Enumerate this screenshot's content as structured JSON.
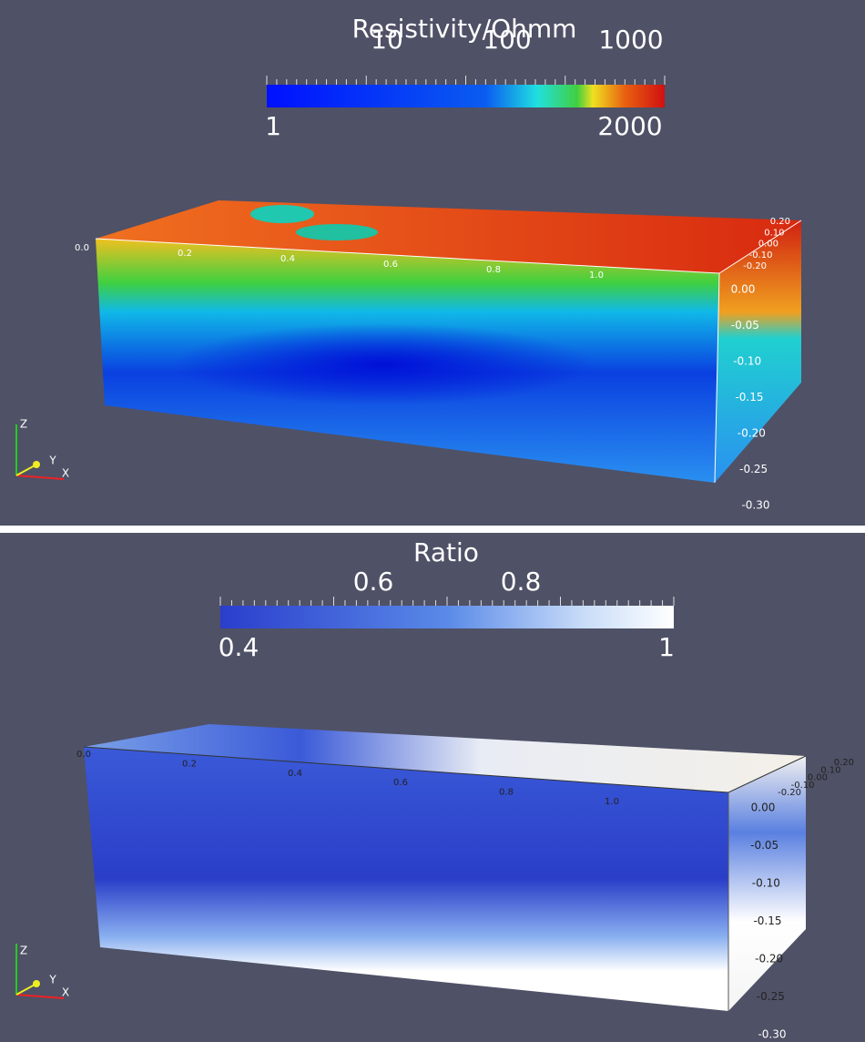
{
  "panels": [
    {
      "colorbar": {
        "title": "Resistivity/Ohmm",
        "major_labels": [
          "10",
          "100",
          "1000"
        ],
        "min_label": "1",
        "max_label": "2000"
      },
      "x_labels": [
        "0.0",
        "0.2",
        "0.4",
        "0.6",
        "0.8",
        "1.0"
      ],
      "y_labels": [
        "0.20",
        "0.10",
        "0.00",
        "-0.10",
        "-0.20"
      ],
      "z_labels": [
        "0.00",
        "-0.05",
        "-0.10",
        "-0.15",
        "-0.20",
        "-0.25",
        "-0.30"
      ],
      "axes": [
        "Z",
        "Y",
        "X"
      ]
    },
    {
      "colorbar": {
        "title": "Ratio",
        "major_labels": [
          "0.6",
          "0.8"
        ],
        "min_label": "0.4",
        "max_label": "1"
      },
      "x_labels": [
        "0.0",
        "0.2",
        "0.4",
        "0.6",
        "0.8",
        "1.0"
      ],
      "y_labels": [
        "0.20",
        "0.10",
        "0.00",
        "-0.10",
        "-0.20"
      ],
      "z_labels": [
        "0.00",
        "-0.05",
        "-0.10",
        "-0.15",
        "-0.20",
        "-0.25",
        "-0.30"
      ],
      "axes": [
        "Z",
        "Y",
        "X"
      ]
    }
  ]
}
